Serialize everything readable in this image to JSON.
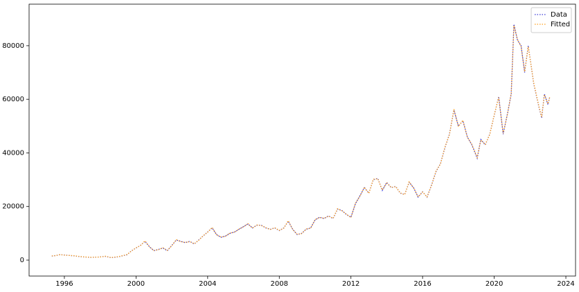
{
  "chart_data": {
    "type": "line",
    "x": [
      1995.3,
      1995.5,
      1995.75,
      1996.0,
      1996.5,
      1997.0,
      1997.5,
      1998.0,
      1998.3,
      1998.6,
      1999.0,
      1999.5,
      1999.75,
      2000.0,
      2000.25,
      2000.5,
      2000.75,
      2001.0,
      2001.25,
      2001.5,
      2001.75,
      2002.0,
      2002.25,
      2002.5,
      2002.75,
      2003.0,
      2003.25,
      2003.5,
      2003.75,
      2004.0,
      2004.25,
      2004.5,
      2004.75,
      2005.0,
      2005.25,
      2005.5,
      2005.75,
      2006.0,
      2006.25,
      2006.5,
      2006.75,
      2007.0,
      2007.25,
      2007.5,
      2007.75,
      2008.0,
      2008.25,
      2008.5,
      2008.75,
      2009.0,
      2009.25,
      2009.5,
      2009.75,
      2010.0,
      2010.25,
      2010.5,
      2010.75,
      2011.0,
      2011.25,
      2011.5,
      2011.75,
      2012.0,
      2012.25,
      2012.5,
      2012.75,
      2013.0,
      2013.25,
      2013.5,
      2013.75,
      2014.0,
      2014.25,
      2014.5,
      2014.75,
      2015.0,
      2015.25,
      2015.5,
      2015.75,
      2016.0,
      2016.25,
      2016.5,
      2016.75,
      2017.0,
      2017.25,
      2017.5,
      2017.75,
      2018.0,
      2018.25,
      2018.5,
      2018.75,
      2019.05,
      2019.25,
      2019.5,
      2019.75,
      2020.0,
      2020.25,
      2020.5,
      2020.75,
      2020.95,
      2021.1,
      2021.3,
      2021.5,
      2021.7,
      2021.9,
      2022.2,
      2022.5,
      2022.65,
      2022.8,
      2023.0,
      2023.1
    ],
    "series": [
      {
        "name": "Data",
        "color": "#3b3bd6",
        "values": [
          1500,
          1700,
          2000,
          1900,
          1600,
          1200,
          1000,
          1200,
          1400,
          900,
          1200,
          2000,
          3500,
          4500,
          5500,
          7000,
          5000,
          3500,
          4000,
          4500,
          3500,
          5500,
          7500,
          7000,
          6500,
          7000,
          6000,
          7500,
          9000,
          10500,
          12000,
          9500,
          8500,
          9000,
          10000,
          10500,
          11500,
          12500,
          13500,
          12000,
          13000,
          13000,
          12000,
          11500,
          12000,
          11000,
          12000,
          14500,
          11500,
          9500,
          10000,
          11500,
          12000,
          15000,
          16000,
          15500,
          16500,
          15500,
          19000,
          18500,
          17000,
          16000,
          21000,
          24000,
          27000,
          25000,
          30000,
          30500,
          26000,
          29000,
          27000,
          27500,
          25000,
          24500,
          29000,
          27000,
          23500,
          25500,
          23500,
          28000,
          33000,
          36000,
          42000,
          47000,
          56000,
          50000,
          52000,
          46000,
          43000,
          38000,
          45000,
          43000,
          47000,
          54000,
          61000,
          47000,
          55000,
          62000,
          88000,
          82000,
          80000,
          70000,
          80000,
          66000,
          57000,
          53000,
          62000,
          58000,
          61000
        ]
      },
      {
        "name": "Fitted",
        "color": "#ff9f1a",
        "values": [
          1550,
          1650,
          2050,
          1850,
          1650,
          1250,
          1050,
          1150,
          1450,
          950,
          1250,
          2100,
          3400,
          4600,
          5400,
          7200,
          4900,
          3600,
          3900,
          4600,
          3600,
          5400,
          7600,
          6900,
          6600,
          6900,
          6100,
          7400,
          9100,
          10400,
          12200,
          9400,
          8600,
          8900,
          10100,
          10400,
          11600,
          12400,
          13600,
          11900,
          13100,
          12900,
          12100,
          11400,
          12100,
          11100,
          11900,
          14700,
          11400,
          9600,
          9900,
          11600,
          11900,
          15100,
          15900,
          15600,
          16400,
          15600,
          19200,
          18400,
          17100,
          15900,
          21200,
          23800,
          27200,
          24900,
          30200,
          30300,
          26200,
          28800,
          27100,
          27400,
          25100,
          24400,
          29200,
          26900,
          23600,
          25400,
          23600,
          27900,
          33200,
          35900,
          42200,
          46800,
          56300,
          49800,
          52200,
          45800,
          43200,
          38300,
          44800,
          43200,
          46800,
          54200,
          60700,
          47300,
          54800,
          62300,
          87500,
          82300,
          79700,
          70300,
          79600,
          66300,
          57300,
          53400,
          61700,
          58300,
          60800
        ]
      }
    ],
    "xlim": [
      1994.03,
      2024.54
    ],
    "ylim": [
      -5950,
      95500
    ],
    "xticks": [
      1996,
      2000,
      2004,
      2008,
      2012,
      2016,
      2020,
      2024
    ],
    "yticks": [
      0,
      20000,
      40000,
      60000,
      80000
    ],
    "grid": false,
    "legend": "upper right"
  }
}
